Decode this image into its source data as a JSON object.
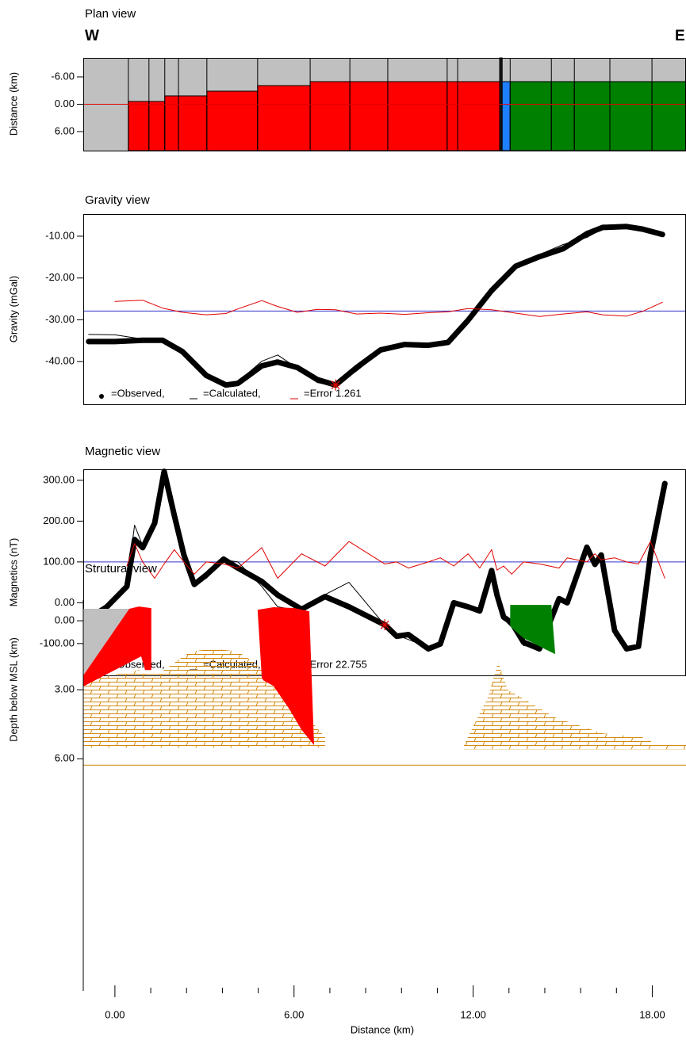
{
  "chart_data": [
    {
      "type": "blocks",
      "title": "Plan view",
      "left_label": "W",
      "right_label": "E",
      "y_label": "Distance (km)",
      "xlim": [
        -1.06,
        19.13
      ],
      "ylim": [
        -10.17,
        10.17
      ],
      "y_inverted": true,
      "yticks": [
        {
          "value": -6,
          "label": "-6.00"
        },
        {
          "value": 0,
          "label": "0.00"
        },
        {
          "value": 6,
          "label": "6.00"
        }
      ],
      "background": "#c0c0c0",
      "profile": 0,
      "profile_color": "#e00000",
      "blocks": [
        {
          "x0": 0.45,
          "x1": 1.14,
          "top": -0.61,
          "color": "#ff0000"
        },
        {
          "x0": 1.14,
          "x1": 1.67,
          "top": -0.61,
          "color": "#ff0000"
        },
        {
          "x0": 1.67,
          "x1": 2.13,
          "top": -1.83,
          "color": "#ff0000"
        },
        {
          "x0": 2.13,
          "x1": 3.08,
          "top": -1.83,
          "color": "#ff0000"
        },
        {
          "x0": 3.08,
          "x1": 4.78,
          "top": -2.87,
          "color": "#ff0000"
        },
        {
          "x0": 4.78,
          "x1": 6.54,
          "top": -4.09,
          "color": "#ff0000"
        },
        {
          "x0": 6.54,
          "x1": 7.87,
          "top": -4.96,
          "color": "#ff0000"
        },
        {
          "x0": 7.87,
          "x1": 9.14,
          "top": -4.96,
          "color": "#ff0000"
        },
        {
          "x0": 9.14,
          "x1": 11.13,
          "top": -4.96,
          "color": "#ff0000"
        },
        {
          "x0": 11.13,
          "x1": 11.48,
          "top": -4.96,
          "color": "#ff0000"
        },
        {
          "x0": 11.48,
          "x1": 12.89,
          "top": -4.96,
          "color": "#ff0000"
        },
        {
          "x0": 12.89,
          "x1": 12.97,
          "top": -10.17,
          "color": "#1a1a1a"
        },
        {
          "x0": 12.97,
          "x1": 13.24,
          "top": -4.96,
          "color": "#1e7fff"
        },
        {
          "x0": 13.24,
          "x1": 14.62,
          "top": -4.96,
          "color": "#008000"
        },
        {
          "x0": 14.62,
          "x1": 15.39,
          "top": -4.96,
          "color": "#008000"
        },
        {
          "x0": 15.39,
          "x1": 16.58,
          "top": -4.96,
          "color": "#008000"
        },
        {
          "x0": 16.58,
          "x1": 17.99,
          "top": -4.96,
          "color": "#008000"
        },
        {
          "x0": 17.99,
          "x1": 19.13,
          "top": -4.96,
          "color": "#008000"
        }
      ]
    },
    {
      "type": "line",
      "title": "Gravity view",
      "y_label": "Gravity (mGal)",
      "xlim": [
        -1.06,
        19.13
      ],
      "ylim": [
        -50.2,
        -4.7
      ],
      "yticks": [
        {
          "value": -10,
          "label": "-10.00"
        },
        {
          "value": -20,
          "label": "-20.00"
        },
        {
          "value": -30,
          "label": "-30.00"
        },
        {
          "value": -40,
          "label": "-40.00"
        }
      ],
      "baseline": -27.9,
      "baseline_color": "#3333cc",
      "legend": "lower left",
      "x": [
        -0.88,
        0,
        0.93,
        1.6,
        2.26,
        3.06,
        3.72,
        4.12,
        4.92,
        5.45,
        6.11,
        6.78,
        7.39,
        8.1,
        8.9,
        9.7,
        10.5,
        11.16,
        11.83,
        12.62,
        13.42,
        14.22,
        15.01,
        15.81,
        16.34,
        17.14,
        17.67,
        18.34
      ],
      "series": [
        {
          "name": "=Observed,",
          "color": "#000000",
          "style": "dots",
          "values": [
            -35.2,
            -35.2,
            -34.9,
            -34.9,
            -37.6,
            -43.3,
            -45.6,
            -45.2,
            -41.0,
            -40.1,
            -41.4,
            -44.3,
            -45.6,
            -41.4,
            -37.2,
            -35.9,
            -36.1,
            -35.4,
            -30.1,
            -23.0,
            -17.2,
            -14.9,
            -13.0,
            -9.4,
            -7.9,
            -7.7,
            -8.3,
            -9.6
          ]
        },
        {
          "name": "=Calculated,",
          "color": "#000000",
          "style": "line",
          "values": [
            -33.5,
            -33.6,
            -34.6,
            -35.1,
            -37.0,
            -42.8,
            -45.7,
            -44.8,
            -39.9,
            -38.4,
            -41.6,
            -45.0,
            -45.8,
            -42.2,
            -37.6,
            -35.8,
            -36.4,
            -35.9,
            -30.6,
            -23.4,
            -17.5,
            -14.4,
            -12.0,
            -10.3,
            -8.2,
            -7.6,
            -8.6,
            -9.8
          ]
        },
        {
          "name": "=Error 1.261",
          "color": "#e00000",
          "style": "line",
          "values": [
            null,
            -25.6,
            -25.3,
            -27.2,
            -28.2,
            -28.8,
            -28.5,
            -27.4,
            -25.4,
            -26.8,
            -28.2,
            -27.5,
            -27.6,
            -28.6,
            -28.4,
            -28.7,
            -28.3,
            -28.1,
            -27.3,
            -27.6,
            -28.4,
            -29.2,
            -28.6,
            -28.1,
            -28.8,
            -29.1,
            -28.0,
            -25.8
          ]
        }
      ],
      "marker": {
        "x": 7.39,
        "y": -45.6,
        "color": "#e00000"
      }
    },
    {
      "type": "line",
      "title": "Magnetic view",
      "y_label": "Magnetics (nT)",
      "xlim": [
        -1.06,
        19.13
      ],
      "ylim": [
        -178,
        327
      ],
      "yticks": [
        {
          "value": 300,
          "label": "300.00"
        },
        {
          "value": 200,
          "label": "200.00"
        },
        {
          "value": 100,
          "label": "100.00"
        },
        {
          "value": 0,
          "label": "0.00"
        },
        {
          "value": -100,
          "label": "-100.00"
        }
      ],
      "baseline": 100,
      "baseline_color": "#3333cc",
      "legend": "lower left",
      "x": [
        -0.8,
        -0.27,
        0.4,
        0.66,
        0.93,
        1.33,
        1.65,
        1.99,
        2.31,
        2.66,
        3.06,
        3.64,
        4.12,
        4.92,
        5.45,
        6.25,
        7.04,
        7.84,
        9.04,
        9.44,
        9.83,
        10.5,
        10.9,
        11.35,
        11.83,
        12.22,
        12.62,
        12.8,
        13.02,
        13.29,
        13.69,
        14.22,
        14.88,
        15.15,
        15.81,
        16.08,
        16.29,
        16.74,
        17.14,
        17.54,
        17.94,
        18.42
      ],
      "series": [
        {
          "name": "=Observed,",
          "color": "#000000",
          "style": "dots",
          "values": [
            -35,
            -10,
            40,
            155,
            135,
            195,
            322,
            214,
            117,
            45,
            68,
            107,
            85,
            52,
            19,
            -16,
            15,
            -10,
            -54,
            -82,
            -78,
            -113,
            -101,
            0,
            -10,
            -20,
            79,
            19,
            -35,
            -49,
            -97,
            -113,
            10,
            0,
            136,
            94,
            117,
            -68,
            -113,
            -107,
            117,
            292
          ]
        },
        {
          "name": "=Calculated,",
          "color": "#000000",
          "style": "line",
          "values": [
            -30,
            -12,
            45,
            190,
            140,
            200,
            315,
            205,
            100,
            50,
            60,
            105,
            100,
            40,
            -10,
            -20,
            20,
            50,
            -55,
            -80,
            -90,
            -110,
            -100,
            -5,
            -10,
            -15,
            75,
            10,
            -40,
            -60,
            -105,
            -110,
            5,
            -5,
            130,
            100,
            110,
            -80,
            -110,
            -110,
            120,
            290
          ]
        },
        {
          "name": "=Error 22.755",
          "color": "#e00000",
          "style": "line",
          "values": [
            null,
            null,
            90,
            145,
            100,
            60,
            95,
            130,
            100,
            70,
            100,
            95,
            85,
            135,
            60,
            120,
            90,
            150,
            95,
            100,
            85,
            100,
            110,
            90,
            120,
            85,
            130,
            80,
            90,
            70,
            100,
            95,
            85,
            110,
            100,
            120,
            105,
            110,
            100,
            95,
            150,
            60
          ]
        }
      ],
      "marker": {
        "x": 9.04,
        "y": -54,
        "color": "#e00000"
      }
    },
    {
      "type": "section",
      "title": "Strutural view",
      "y_label": "Depth below MSL (km)",
      "x_label": "Distance (km)",
      "xlim": [
        -1.06,
        19.13
      ],
      "ylim": [
        -0.9,
        16.1
      ],
      "y_inverted": true,
      "yticks": [
        {
          "value": 0,
          "label": "0.00"
        },
        {
          "value": 3,
          "label": "3.00"
        },
        {
          "value": 6,
          "label": "6.00"
        }
      ],
      "xticks": [
        {
          "value": 0,
          "label": "0.00"
        },
        {
          "value": 6,
          "label": "6.00"
        },
        {
          "value": 12,
          "label": "12.00"
        },
        {
          "value": 18,
          "label": "18.00"
        }
      ],
      "xminorticks": [
        1.2,
        2.4,
        3.6,
        4.8,
        7.2,
        8.4,
        9.6,
        10.8,
        13.2,
        14.4,
        15.6,
        16.8
      ],
      "basement": 6.28,
      "basement_color": "#d4870a",
      "bodies": [
        {
          "color": "#d4870a",
          "pattern": "limestone",
          "x": [
            -1.06,
            0.8,
            1.06,
            1.46,
            2.52,
            3.32,
            4.12,
            4.65,
            5.31,
            6.24,
            7.04,
            7.04,
            -1.06
          ],
          "y": [
            2.59,
            2.14,
            2.31,
            2.31,
            1.34,
            1.21,
            1.34,
            1.79,
            2.66,
            3.86,
            5.07,
            5.52,
            5.52
          ]
        },
        {
          "color": "#d4870a",
          "pattern": "limestone",
          "x": [
            11.69,
            12.49,
            12.84,
            13.16,
            14.75,
            16.34,
            17.67,
            18.2,
            19.13,
            19.13,
            11.69
          ],
          "y": [
            5.41,
            3.34,
            1.79,
            3.0,
            4.21,
            4.9,
            5.07,
            5.41,
            5.41,
            5.59,
            5.59
          ]
        },
        {
          "color": "#c0c0c0",
          "x": [
            -1.06,
            0.48,
            -1.06
          ],
          "y": [
            -0.52,
            -0.52,
            2.38
          ]
        },
        {
          "color": "#ff0000",
          "x": [
            0.48,
            0.8,
            1.22,
            1.22,
            1.01,
            0.88,
            -1.06,
            -1.06
          ],
          "y": [
            -0.52,
            -0.62,
            -0.55,
            2.14,
            2.14,
            1.55,
            2.86,
            2.38
          ]
        },
        {
          "color": "#ff0000",
          "x": [
            4.78,
            5.31,
            6.03,
            6.51,
            6.67,
            6.24,
            5.85,
            5.31,
            4.97,
            4.92
          ],
          "y": [
            -0.48,
            -0.59,
            -0.55,
            -0.41,
            5.41,
            4.72,
            3.86,
            2.83,
            2.59,
            2.48
          ]
        },
        {
          "color": "#008000",
          "x": [
            13.24,
            14.62,
            14.75,
            14.48,
            13.69,
            13.24
          ],
          "y": [
            -0.69,
            -0.69,
            1.45,
            1.28,
            0.76,
            0.24
          ]
        }
      ]
    }
  ]
}
